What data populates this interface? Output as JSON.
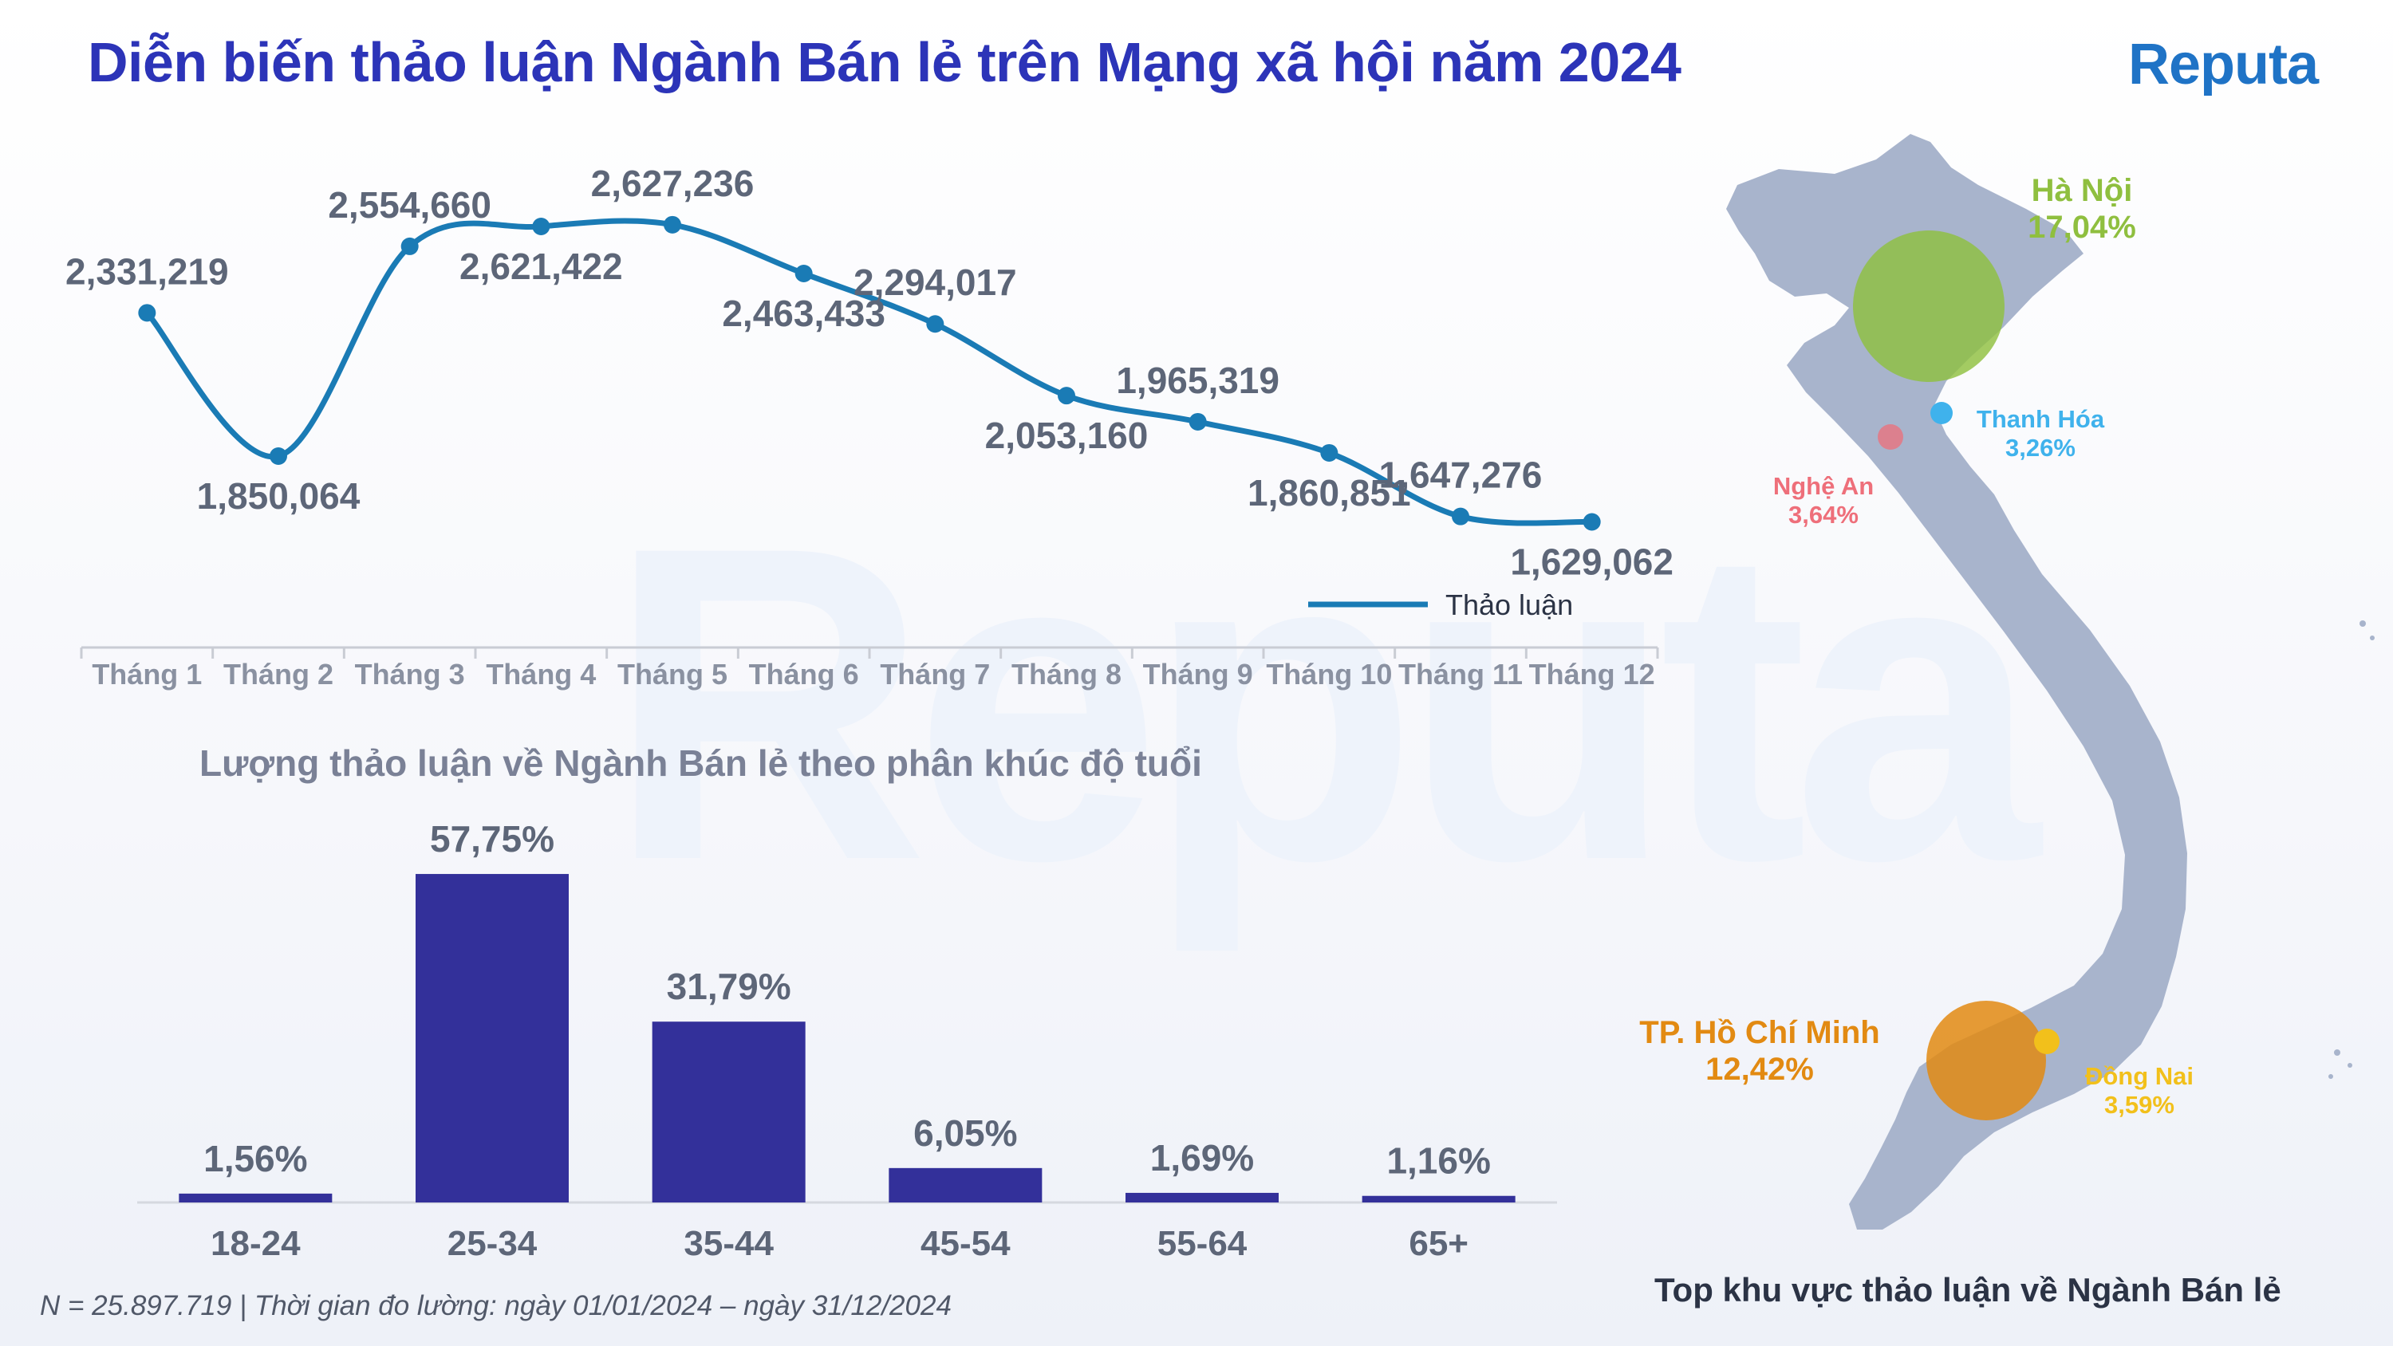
{
  "header": {
    "title": "Diễn biến thảo luận Ngành Bán lẻ trên Mạng xã hội năm 2024",
    "logo": "Reputa"
  },
  "chart_data": [
    {
      "type": "line",
      "title": "",
      "categories": [
        "Tháng 1",
        "Tháng 2",
        "Tháng 3",
        "Tháng 4",
        "Tháng 5",
        "Tháng 6",
        "Tháng 7",
        "Tháng 8",
        "Tháng 9",
        "Tháng 10",
        "Tháng 11",
        "Tháng 12"
      ],
      "series": [
        {
          "name": "Thảo luận",
          "values": [
            2331219,
            1850064,
            2554660,
            2621422,
            2627236,
            2463433,
            2294017,
            2053160,
            1965319,
            1860851,
            1647276,
            1629062
          ],
          "labels": [
            "2,331,219",
            "1,850,064",
            "2,554,660",
            "2,621,422",
            "2,627,236",
            "2,463,433",
            "2,294,017",
            "2,053,160",
            "1,965,319",
            "1,860,851",
            "1,647,276",
            "1,629,062"
          ],
          "color": "#1a7bb5"
        }
      ],
      "ylim": [
        1400000,
        2900000
      ],
      "legend": "right",
      "grid": false
    },
    {
      "type": "bar",
      "title": "Lượng thảo luận về Ngành Bán lẻ theo phân khúc độ tuổi",
      "categories": [
        "18-24",
        "25-34",
        "35-44",
        "45-54",
        "55-64",
        "65+"
      ],
      "values": [
        1.56,
        57.75,
        31.79,
        6.05,
        1.69,
        1.16
      ],
      "labels": [
        "1,56%",
        "57,75%",
        "31,79%",
        "6,05%",
        "1,69%",
        "1,16%"
      ],
      "color": "#33309a",
      "ylim": [
        0,
        60
      ],
      "grid": false
    }
  ],
  "map": {
    "caption": "Top khu vực thảo luận về Ngành Bán lẻ",
    "regions": [
      {
        "name": "Hà Nội",
        "pct": "17,04%",
        "color": "#8fbf3f",
        "value": 17.04
      },
      {
        "name": "Thanh Hóa",
        "pct": "3,26%",
        "color": "#3fb2ec",
        "value": 3.26
      },
      {
        "name": "Nghệ An",
        "pct": "3,64%",
        "color": "#ee6f7a",
        "value": 3.64
      },
      {
        "name": "TP. Hồ Chí Minh",
        "pct": "12,42%",
        "color": "#e28a12",
        "value": 12.42
      },
      {
        "name": "Đồng Nai",
        "pct": "3,59%",
        "color": "#f2c01b",
        "value": 3.59
      }
    ]
  },
  "footnote": "N = 25.897.719 | Thời gian đo lường: ngày 01/01/2024 – ngày 31/12/2024"
}
